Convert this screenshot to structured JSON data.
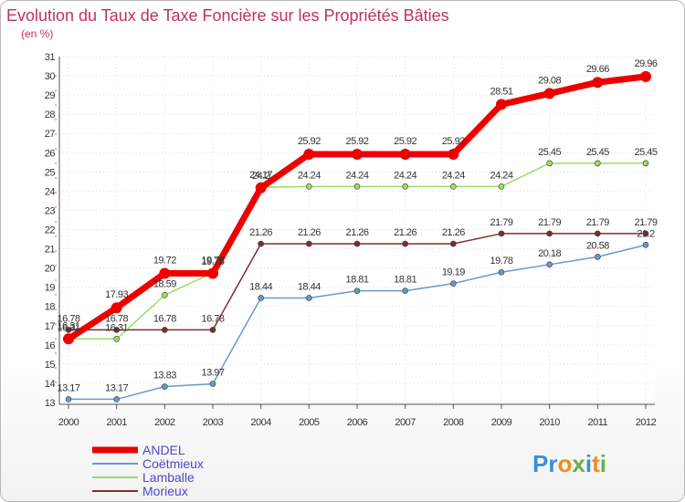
{
  "title": "Evolution du Taux de Taxe Foncière sur les Propriétés Bâties",
  "unit": "(en %)",
  "logo": {
    "letters": [
      "P",
      "r",
      "o",
      "x",
      "i",
      "t",
      "i"
    ],
    "colors": [
      "#3a8fd6",
      "#3a8fd6",
      "#f28c1b",
      "#6ab04c",
      "#3a8fd6",
      "#f28c1b",
      "#6ab04c"
    ]
  },
  "chart_data": {
    "type": "line",
    "title": "Evolution du Taux de Taxe Foncière sur les Propriétés Bâties",
    "ylabel": "(en %)",
    "xlabel": "",
    "ylim": [
      13,
      31
    ],
    "yticks": [
      "13",
      "14",
      "15",
      "16",
      "17",
      "18",
      "19",
      "20",
      "21",
      "22",
      "23",
      "24",
      "25",
      "26",
      "27",
      "28",
      "29",
      "30",
      "31"
    ],
    "x": [
      "2000",
      "2001",
      "2002",
      "2003",
      "2004",
      "2005",
      "2006",
      "2007",
      "2008",
      "2009",
      "2010",
      "2011",
      "2012"
    ],
    "grid": true,
    "legend_position": "bottom-left",
    "series": [
      {
        "name": "ANDEL",
        "color": "#ee0000",
        "width": 7,
        "marker": 6,
        "values": [
          16.31,
          17.93,
          19.72,
          19.72,
          24.17,
          25.92,
          25.92,
          25.92,
          25.92,
          28.51,
          29.08,
          29.66,
          29.96
        ],
        "labels": [
          "16.31",
          "17.93",
          "19.72",
          "19.72",
          "24.17",
          "25.92",
          "25.92",
          "25.92",
          "25.92",
          "28.51",
          "29.08",
          "29.66",
          "29.96"
        ]
      },
      {
        "name": "Coëtmieux",
        "color": "#6699cc",
        "width": 1.5,
        "marker": 3,
        "values": [
          13.17,
          13.17,
          13.83,
          13.97,
          18.44,
          18.44,
          18.81,
          18.81,
          19.19,
          19.78,
          20.18,
          20.58,
          21.2
        ],
        "labels": [
          "13.17",
          "13.17",
          "13.83",
          "13.97",
          "18.44",
          "18.44",
          "18.81",
          "18.81",
          "19.19",
          "19.78",
          "20.18",
          "20.58",
          "21.2"
        ]
      },
      {
        "name": "Lamballe",
        "color": "#99dd66",
        "width": 1.5,
        "marker": 3,
        "values": [
          16.31,
          16.31,
          18.59,
          19.75,
          24.2,
          24.24,
          24.24,
          24.24,
          24.24,
          24.24,
          25.45,
          25.45,
          25.45
        ],
        "labels": [
          "16.31",
          "16.31",
          "18.59",
          "19.75",
          "24.2",
          "24.24",
          "24.24",
          "24.24",
          "24.24",
          "24.24",
          "25.45",
          "25.45",
          "25.45"
        ]
      },
      {
        "name": "Morieux",
        "color": "#7a3030",
        "width": 1.5,
        "marker": 3,
        "values": [
          16.78,
          16.78,
          16.78,
          16.78,
          21.26,
          21.26,
          21.26,
          21.26,
          21.26,
          21.79,
          21.79,
          21.79,
          21.79
        ],
        "labels": [
          "16.78",
          "16.78",
          "16.78",
          "16.78",
          "21.26",
          "21.26",
          "21.26",
          "21.26",
          "21.26",
          "21.79",
          "21.79",
          "21.79",
          "21.79"
        ]
      }
    ]
  }
}
